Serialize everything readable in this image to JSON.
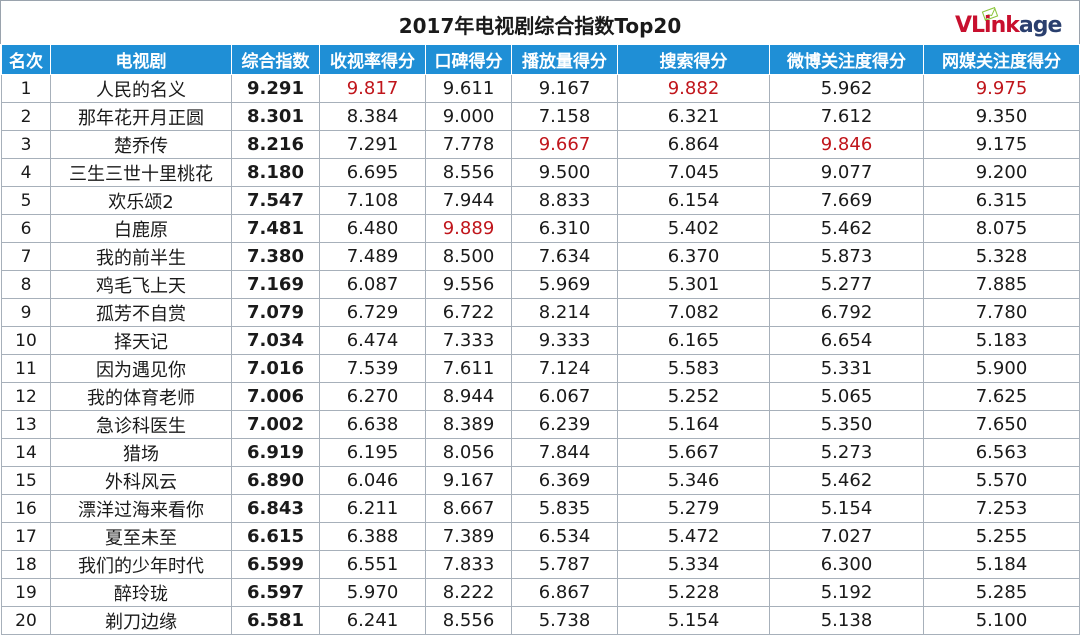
{
  "title": "2017年电视剧综合指数Top20",
  "logo": {
    "text_v": "V",
    "text_mid": "Link",
    "text_end": "age",
    "brand_color": "#c8102e",
    "accent_color": "#2a3f6e"
  },
  "header_color": "#1f8fd6",
  "highlight_color": "#c0151b",
  "columns": [
    "名次",
    "电视剧",
    "综合指数",
    "收视率得分",
    "口碑得分",
    "播放量得分",
    "搜索得分",
    "微博关注度得分",
    "网媒关注度得分"
  ],
  "rows": [
    {
      "rank": "1",
      "drama": "人民的名义",
      "composite": "9.291",
      "ratings": "9.817",
      "reputation": "9.611",
      "plays": "9.167",
      "search": "9.882",
      "weibo": "5.962",
      "media": "9.975",
      "highlight": [
        "ratings",
        "search",
        "media"
      ]
    },
    {
      "rank": "2",
      "drama": "那年花开月正圆",
      "composite": "8.301",
      "ratings": "8.384",
      "reputation": "9.000",
      "plays": "7.158",
      "search": "6.321",
      "weibo": "7.612",
      "media": "9.350",
      "highlight": []
    },
    {
      "rank": "3",
      "drama": "楚乔传",
      "composite": "8.216",
      "ratings": "7.291",
      "reputation": "7.778",
      "plays": "9.667",
      "search": "6.864",
      "weibo": "9.846",
      "media": "9.175",
      "highlight": [
        "plays",
        "weibo"
      ]
    },
    {
      "rank": "4",
      "drama": "三生三世十里桃花",
      "composite": "8.180",
      "ratings": "6.695",
      "reputation": "8.556",
      "plays": "9.500",
      "search": "7.045",
      "weibo": "9.077",
      "media": "9.200",
      "highlight": []
    },
    {
      "rank": "5",
      "drama": "欢乐颂2",
      "composite": "7.547",
      "ratings": "7.108",
      "reputation": "7.944",
      "plays": "8.833",
      "search": "6.154",
      "weibo": "7.669",
      "media": "6.315",
      "highlight": []
    },
    {
      "rank": "6",
      "drama": "白鹿原",
      "composite": "7.481",
      "ratings": "6.480",
      "reputation": "9.889",
      "plays": "6.310",
      "search": "5.402",
      "weibo": "5.462",
      "media": "8.075",
      "highlight": [
        "reputation"
      ]
    },
    {
      "rank": "7",
      "drama": "我的前半生",
      "composite": "7.380",
      "ratings": "7.489",
      "reputation": "8.500",
      "plays": "7.634",
      "search": "6.370",
      "weibo": "5.873",
      "media": "5.328",
      "highlight": []
    },
    {
      "rank": "8",
      "drama": "鸡毛飞上天",
      "composite": "7.169",
      "ratings": "6.087",
      "reputation": "9.556",
      "plays": "5.969",
      "search": "5.301",
      "weibo": "5.277",
      "media": "7.885",
      "highlight": []
    },
    {
      "rank": "9",
      "drama": "孤芳不自赏",
      "composite": "7.079",
      "ratings": "6.729",
      "reputation": "6.722",
      "plays": "8.214",
      "search": "7.082",
      "weibo": "6.792",
      "media": "7.780",
      "highlight": []
    },
    {
      "rank": "10",
      "drama": "择天记",
      "composite": "7.034",
      "ratings": "6.474",
      "reputation": "7.333",
      "plays": "9.333",
      "search": "6.165",
      "weibo": "6.654",
      "media": "5.183",
      "highlight": []
    },
    {
      "rank": "11",
      "drama": "因为遇见你",
      "composite": "7.016",
      "ratings": "7.539",
      "reputation": "7.611",
      "plays": "7.124",
      "search": "5.583",
      "weibo": "5.331",
      "media": "5.900",
      "highlight": []
    },
    {
      "rank": "12",
      "drama": "我的体育老师",
      "composite": "7.006",
      "ratings": "6.270",
      "reputation": "8.944",
      "plays": "6.067",
      "search": "5.252",
      "weibo": "5.065",
      "media": "7.625",
      "highlight": []
    },
    {
      "rank": "13",
      "drama": "急诊科医生",
      "composite": "7.002",
      "ratings": "6.638",
      "reputation": "8.389",
      "plays": "6.239",
      "search": "5.164",
      "weibo": "5.350",
      "media": "7.650",
      "highlight": []
    },
    {
      "rank": "14",
      "drama": "猎场",
      "composite": "6.919",
      "ratings": "6.195",
      "reputation": "8.056",
      "plays": "7.844",
      "search": "5.667",
      "weibo": "5.273",
      "media": "6.563",
      "highlight": []
    },
    {
      "rank": "15",
      "drama": "外科风云",
      "composite": "6.890",
      "ratings": "6.046",
      "reputation": "9.167",
      "plays": "6.369",
      "search": "5.346",
      "weibo": "5.462",
      "media": "5.570",
      "highlight": []
    },
    {
      "rank": "16",
      "drama": "漂洋过海来看你",
      "composite": "6.843",
      "ratings": "6.211",
      "reputation": "8.667",
      "plays": "5.835",
      "search": "5.279",
      "weibo": "5.154",
      "media": "7.253",
      "highlight": []
    },
    {
      "rank": "17",
      "drama": "夏至未至",
      "composite": "6.615",
      "ratings": "6.388",
      "reputation": "7.389",
      "plays": "6.534",
      "search": "5.472",
      "weibo": "7.027",
      "media": "5.255",
      "highlight": []
    },
    {
      "rank": "18",
      "drama": "我们的少年时代",
      "composite": "6.599",
      "ratings": "6.551",
      "reputation": "7.833",
      "plays": "5.787",
      "search": "5.334",
      "weibo": "6.300",
      "media": "5.184",
      "highlight": []
    },
    {
      "rank": "19",
      "drama": "醉玲珑",
      "composite": "6.597",
      "ratings": "5.970",
      "reputation": "8.222",
      "plays": "6.867",
      "search": "5.228",
      "weibo": "5.192",
      "media": "5.285",
      "highlight": []
    },
    {
      "rank": "20",
      "drama": "剃刀边缘",
      "composite": "6.581",
      "ratings": "6.241",
      "reputation": "8.556",
      "plays": "5.738",
      "search": "5.154",
      "weibo": "5.138",
      "media": "5.100",
      "highlight": []
    }
  ]
}
